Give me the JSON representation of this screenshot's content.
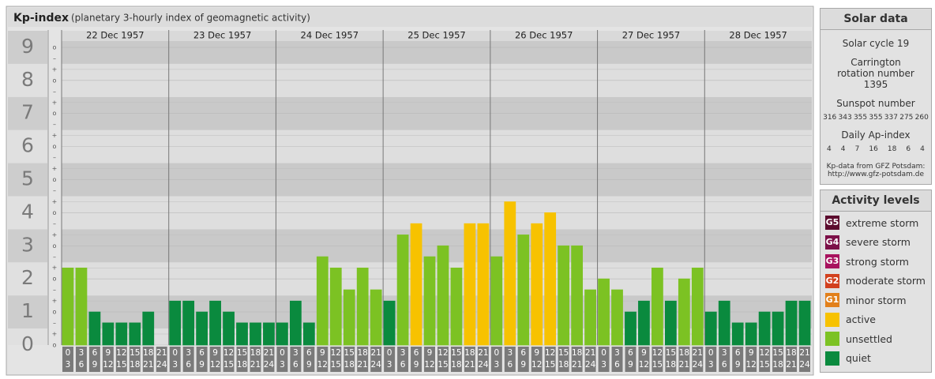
{
  "chart_data": {
    "type": "bar",
    "title": "Kp-index",
    "subtitle": "(planetary 3-hourly index of geomagnetic activity)",
    "ylim": [
      0,
      9.5
    ],
    "yticks": [
      0,
      1,
      2,
      3,
      4,
      5,
      6,
      7,
      8,
      9
    ],
    "minor_tick_labels": [
      "o",
      "+",
      "–"
    ],
    "intervals": [
      [
        0,
        3
      ],
      [
        3,
        6
      ],
      [
        6,
        9
      ],
      [
        9,
        12
      ],
      [
        12,
        15
      ],
      [
        15,
        18
      ],
      [
        18,
        21
      ],
      [
        21,
        24
      ]
    ],
    "days": [
      {
        "date": "22 Dec 1957",
        "values": [
          2.33,
          2.33,
          1,
          0.67,
          0.67,
          0.67,
          1,
          0
        ],
        "colors": [
          "#7cc223",
          "#7cc223",
          "#0a8a3e",
          "#0a8a3e",
          "#0a8a3e",
          "#0a8a3e",
          "#0a8a3e",
          "#0a8a3e"
        ]
      },
      {
        "date": "23 Dec 1957",
        "values": [
          1.33,
          1.33,
          1,
          1.33,
          1,
          0.67,
          0.67,
          0.67
        ],
        "colors": [
          "#0a8a3e",
          "#0a8a3e",
          "#0a8a3e",
          "#0a8a3e",
          "#0a8a3e",
          "#0a8a3e",
          "#0a8a3e",
          "#0a8a3e"
        ]
      },
      {
        "date": "24 Dec 1957",
        "values": [
          0.67,
          1.33,
          0.67,
          2.67,
          2.33,
          1.67,
          2.33,
          1.67
        ],
        "colors": [
          "#0a8a3e",
          "#0a8a3e",
          "#0a8a3e",
          "#7cc223",
          "#7cc223",
          "#7cc223",
          "#7cc223",
          "#7cc223"
        ]
      },
      {
        "date": "25 Dec 1957",
        "values": [
          1.33,
          3.33,
          3.67,
          2.67,
          3,
          2.33,
          3.67,
          3.67
        ],
        "colors": [
          "#0a8a3e",
          "#7cc223",
          "#f7c200",
          "#7cc223",
          "#7cc223",
          "#7cc223",
          "#f7c200",
          "#f7c200"
        ]
      },
      {
        "date": "26 Dec 1957",
        "values": [
          2.67,
          4.33,
          3.33,
          3.67,
          4,
          3,
          3,
          1.67
        ],
        "colors": [
          "#7cc223",
          "#f7c200",
          "#7cc223",
          "#f7c200",
          "#f7c200",
          "#7cc223",
          "#7cc223",
          "#7cc223"
        ]
      },
      {
        "date": "27 Dec 1957",
        "values": [
          2,
          1.67,
          1,
          1.33,
          2.33,
          1.33,
          2,
          2.33
        ],
        "colors": [
          "#7cc223",
          "#7cc223",
          "#0a8a3e",
          "#0a8a3e",
          "#7cc223",
          "#0a8a3e",
          "#7cc223",
          "#7cc223"
        ]
      },
      {
        "date": "28 Dec 1957",
        "values": [
          1,
          1.33,
          0.67,
          0.67,
          1,
          1,
          1.33,
          1.33
        ],
        "colors": [
          "#0a8a3e",
          "#0a8a3e",
          "#0a8a3e",
          "#0a8a3e",
          "#0a8a3e",
          "#0a8a3e",
          "#0a8a3e",
          "#0a8a3e"
        ]
      }
    ]
  },
  "solar_data": {
    "title": "Solar data",
    "cycle": "Solar cycle 19",
    "carrington": "Carrington rotation number 1395",
    "sunspot_label": "Sunspot number",
    "sunspot_numbers": [
      316,
      343,
      355,
      355,
      337,
      275,
      260
    ],
    "ap_label": "Daily Ap-index",
    "ap_values": [
      4,
      4,
      7,
      16,
      18,
      6,
      4
    ],
    "source": "Kp-data from GFZ Potsdam:",
    "source_url": "http://www.gfz-potsdam.de"
  },
  "activity_levels": {
    "title": "Activity levels",
    "levels": [
      {
        "code": "G5",
        "name": "extreme storm",
        "color": "#5c0c2e"
      },
      {
        "code": "G4",
        "name": "severe storm",
        "color": "#7c1048"
      },
      {
        "code": "G3",
        "name": "strong storm",
        "color": "#a8125e"
      },
      {
        "code": "G2",
        "name": "moderate storm",
        "color": "#d2401e"
      },
      {
        "code": "G1",
        "name": "minor storm",
        "color": "#e2801a"
      },
      {
        "name": "active",
        "color": "#f7c200"
      },
      {
        "name": "unsettled",
        "color": "#7cc223"
      },
      {
        "name": "quiet",
        "color": "#0a8a3e"
      }
    ]
  }
}
